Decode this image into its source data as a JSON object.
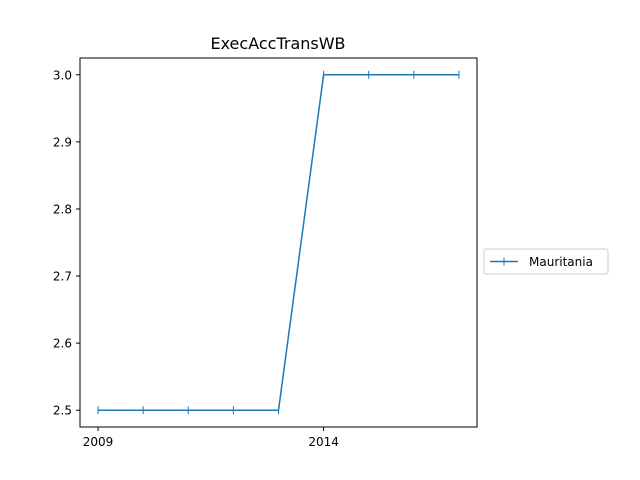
{
  "chart_data": {
    "type": "line",
    "title": "ExecAccTransWB",
    "xlabel": "",
    "ylabel": "",
    "x": [
      2009,
      2010,
      2011,
      2012,
      2013,
      2014,
      2015,
      2016,
      2017
    ],
    "series": [
      {
        "name": "Mauritania",
        "values": [
          2.5,
          2.5,
          2.5,
          2.5,
          2.5,
          3.0,
          3.0,
          3.0,
          3.0
        ],
        "color": "#1f77b4",
        "marker": "vertical-line"
      }
    ],
    "xlim": [
      2008.6,
      2017.4
    ],
    "ylim": [
      2.475,
      3.025
    ],
    "xticks": [
      2009,
      2014
    ],
    "xtick_labels": [
      "2009",
      "2014"
    ],
    "yticks": [
      2.5,
      2.6,
      2.7,
      2.8,
      2.9,
      3.0
    ],
    "ytick_labels": [
      "2.5",
      "2.6",
      "2.7",
      "2.8",
      "2.9",
      "3.0"
    ],
    "grid": false,
    "legend_position": "right-outside"
  }
}
